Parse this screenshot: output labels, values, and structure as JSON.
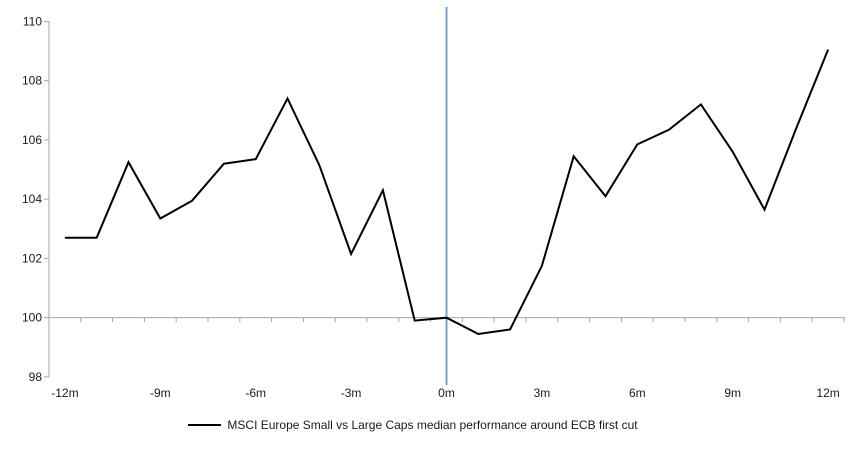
{
  "chart_data": {
    "type": "line",
    "title": "",
    "xlabel": "",
    "ylabel": "",
    "x": [
      -12,
      -11,
      -10,
      -9,
      -8,
      -7,
      -6,
      -5,
      -4,
      -3,
      -2,
      -1,
      0,
      1,
      2,
      3,
      4,
      5,
      6,
      7,
      8,
      9,
      10,
      11,
      12
    ],
    "series": [
      {
        "name": "MSCI Europe Small vs Large Caps median performance around ECB first cut",
        "color": "#000000",
        "values": [
          102.7,
          102.7,
          105.25,
          103.35,
          103.95,
          105.2,
          105.35,
          107.4,
          105.15,
          102.15,
          104.3,
          99.9,
          100.0,
          99.45,
          99.6,
          101.75,
          105.45,
          104.1,
          105.85,
          106.35,
          107.2,
          105.6,
          103.65,
          106.4,
          109.05
        ]
      }
    ],
    "ylim": [
      98,
      110
    ],
    "y_ticks": [
      110,
      108,
      106,
      104,
      102,
      100,
      98
    ],
    "x_tick_positions": [
      -12,
      -9,
      -6,
      -3,
      0,
      3,
      6,
      9,
      12
    ],
    "x_tick_labels": [
      "-12m",
      "-9m",
      "-6m",
      "-3m",
      "0m",
      "3m",
      "6m",
      "9m",
      "12m"
    ],
    "x_axis_crosses_at": 100,
    "event_line_at_x": 0,
    "grid": "off",
    "legend_position": "bottom"
  },
  "legend": {
    "label": "MSCI Europe Small vs Large Caps median performance around ECB first cut"
  },
  "colors": {
    "series": "#000000",
    "event_line": "#76a3cd",
    "axis": "#a6a6a6",
    "text": "#1a1a1a",
    "background": "#ffffff"
  }
}
